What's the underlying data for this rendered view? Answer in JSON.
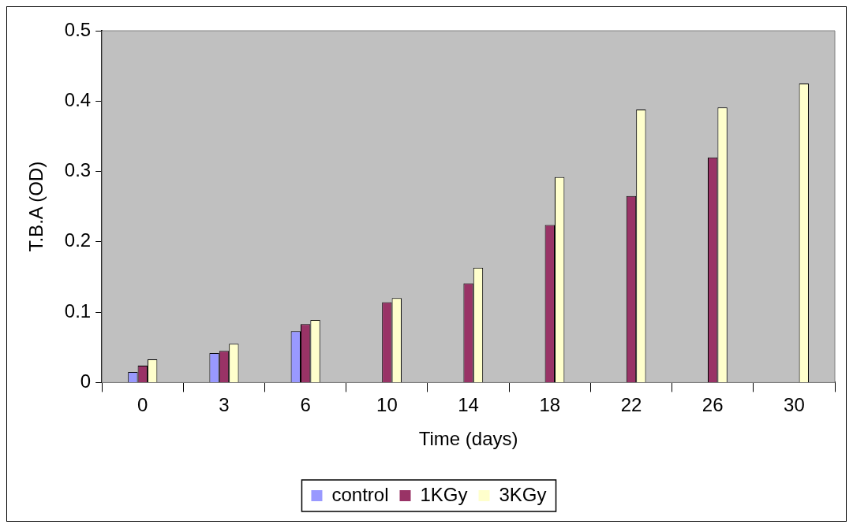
{
  "chart_data": {
    "type": "bar",
    "xlabel": "Time (days)",
    "ylabel": "T.B.A (OD)",
    "categories": [
      "0",
      "3",
      "6",
      "10",
      "14",
      "18",
      "22",
      "26",
      "30"
    ],
    "series": [
      {
        "name": "control",
        "color": "#9999ff",
        "values": [
          0.015,
          0.042,
          0.073,
          null,
          null,
          null,
          null,
          null,
          null
        ]
      },
      {
        "name": "1KGy",
        "color": "#993366",
        "values": [
          0.024,
          0.045,
          0.083,
          0.114,
          0.141,
          0.224,
          0.265,
          0.32,
          null
        ]
      },
      {
        "name": "3KGy",
        "color": "#ffffcc",
        "values": [
          0.033,
          0.055,
          0.089,
          0.12,
          0.163,
          0.292,
          0.388,
          0.391,
          0.425
        ]
      }
    ],
    "ylim": [
      0,
      0.5
    ],
    "yticks": [
      0,
      0.1,
      0.2,
      0.3,
      0.4,
      0.5
    ],
    "grid": false,
    "legend": "bottom"
  }
}
